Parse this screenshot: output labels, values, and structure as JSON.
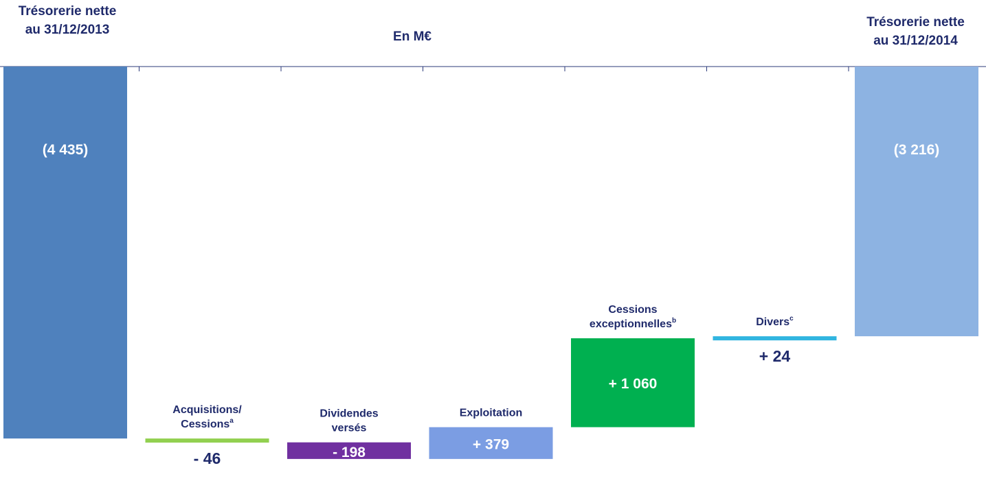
{
  "header": {
    "left_title_line1": "Trésorerie nette",
    "left_title_line2": "au 31/12/2013",
    "unit": "En M€",
    "right_title_line1": "Trésorerie nette",
    "right_title_line2": "au 31/12/2014"
  },
  "chart_data": {
    "type": "bar",
    "subtype": "waterfall",
    "xlabel": "",
    "ylabel": "En M€",
    "categories": [
      "Trésorerie nette au 31/12/2013",
      "Acquisitions/Cessions",
      "Dividendes versés",
      "Exploitation",
      "Cessions exceptionnelles",
      "Divers",
      "Trésorerie nette au 31/12/2014"
    ],
    "values": [
      -4435,
      -46,
      -198,
      379,
      1060,
      24,
      -3216
    ],
    "kind": [
      "total",
      "delta",
      "delta",
      "delta",
      "delta",
      "delta",
      "total"
    ],
    "value_labels": [
      "(4 435)",
      "- 46",
      "- 198",
      "+ 379",
      "+ 1 060",
      "+ 24",
      "(3 216)"
    ],
    "category_labels": [
      {
        "lines": [
          ""
        ],
        "sup": ""
      },
      {
        "lines": [
          "Acquisitions/",
          "Cessions"
        ],
        "sup": "a"
      },
      {
        "lines": [
          "Dividendes",
          "versés"
        ],
        "sup": ""
      },
      {
        "lines": [
          "Exploitation"
        ],
        "sup": ""
      },
      {
        "lines": [
          "Cessions",
          "exceptionnelles"
        ],
        "sup": "b"
      },
      {
        "lines": [
          "Divers"
        ],
        "sup": "c"
      },
      {
        "lines": [
          ""
        ],
        "sup": ""
      }
    ],
    "colors": [
      "#4f81bd",
      "#92d050",
      "#7030a0",
      "#7b9de3",
      "#00b050",
      "#31b5e0",
      "#8db3e2"
    ],
    "ylim": [
      -4500,
      0
    ],
    "grid": false,
    "legend": "none"
  }
}
